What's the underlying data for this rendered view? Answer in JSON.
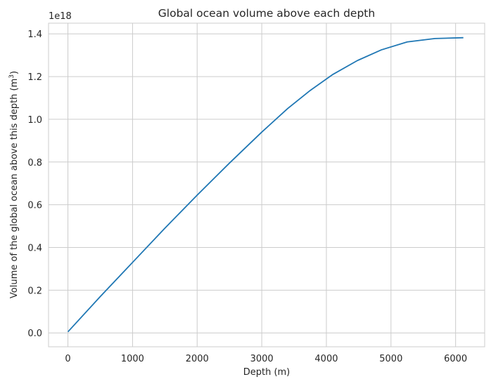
{
  "chart_data": {
    "type": "line",
    "title": "Global ocean volume above each depth",
    "xlabel": "Depth (m)",
    "ylabel_main": "Volume of the global ocean above this depth (m",
    "ylabel_sup": "3",
    "ylabel_end": ")",
    "offset_text": "1e18",
    "xlim": [
      -300,
      6450
    ],
    "ylim": [
      -0.065,
      1.45
    ],
    "x_ticks": [
      0,
      1000,
      2000,
      3000,
      4000,
      5000,
      6000
    ],
    "x_tick_labels": [
      "0",
      "1000",
      "2000",
      "3000",
      "4000",
      "5000",
      "6000"
    ],
    "y_ticks": [
      0.0,
      0.2,
      0.4,
      0.6,
      0.8,
      1.0,
      1.2,
      1.4
    ],
    "y_tick_labels": [
      "0.0",
      "0.2",
      "0.4",
      "0.6",
      "0.8",
      "1.0",
      "1.2",
      "1.4"
    ],
    "grid": true,
    "color": "#1f77b4",
    "series": [
      {
        "x": [
          0,
          500,
          1000,
          1500,
          2000,
          2500,
          3000,
          3400,
          3750,
          4100,
          4480,
          4850,
          5250,
          5680,
          6120
        ],
        "y": [
          0.005,
          0.17,
          0.33,
          0.49,
          0.645,
          0.795,
          0.94,
          1.05,
          1.135,
          1.21,
          1.275,
          1.325,
          1.362,
          1.378,
          1.382
        ]
      }
    ]
  }
}
